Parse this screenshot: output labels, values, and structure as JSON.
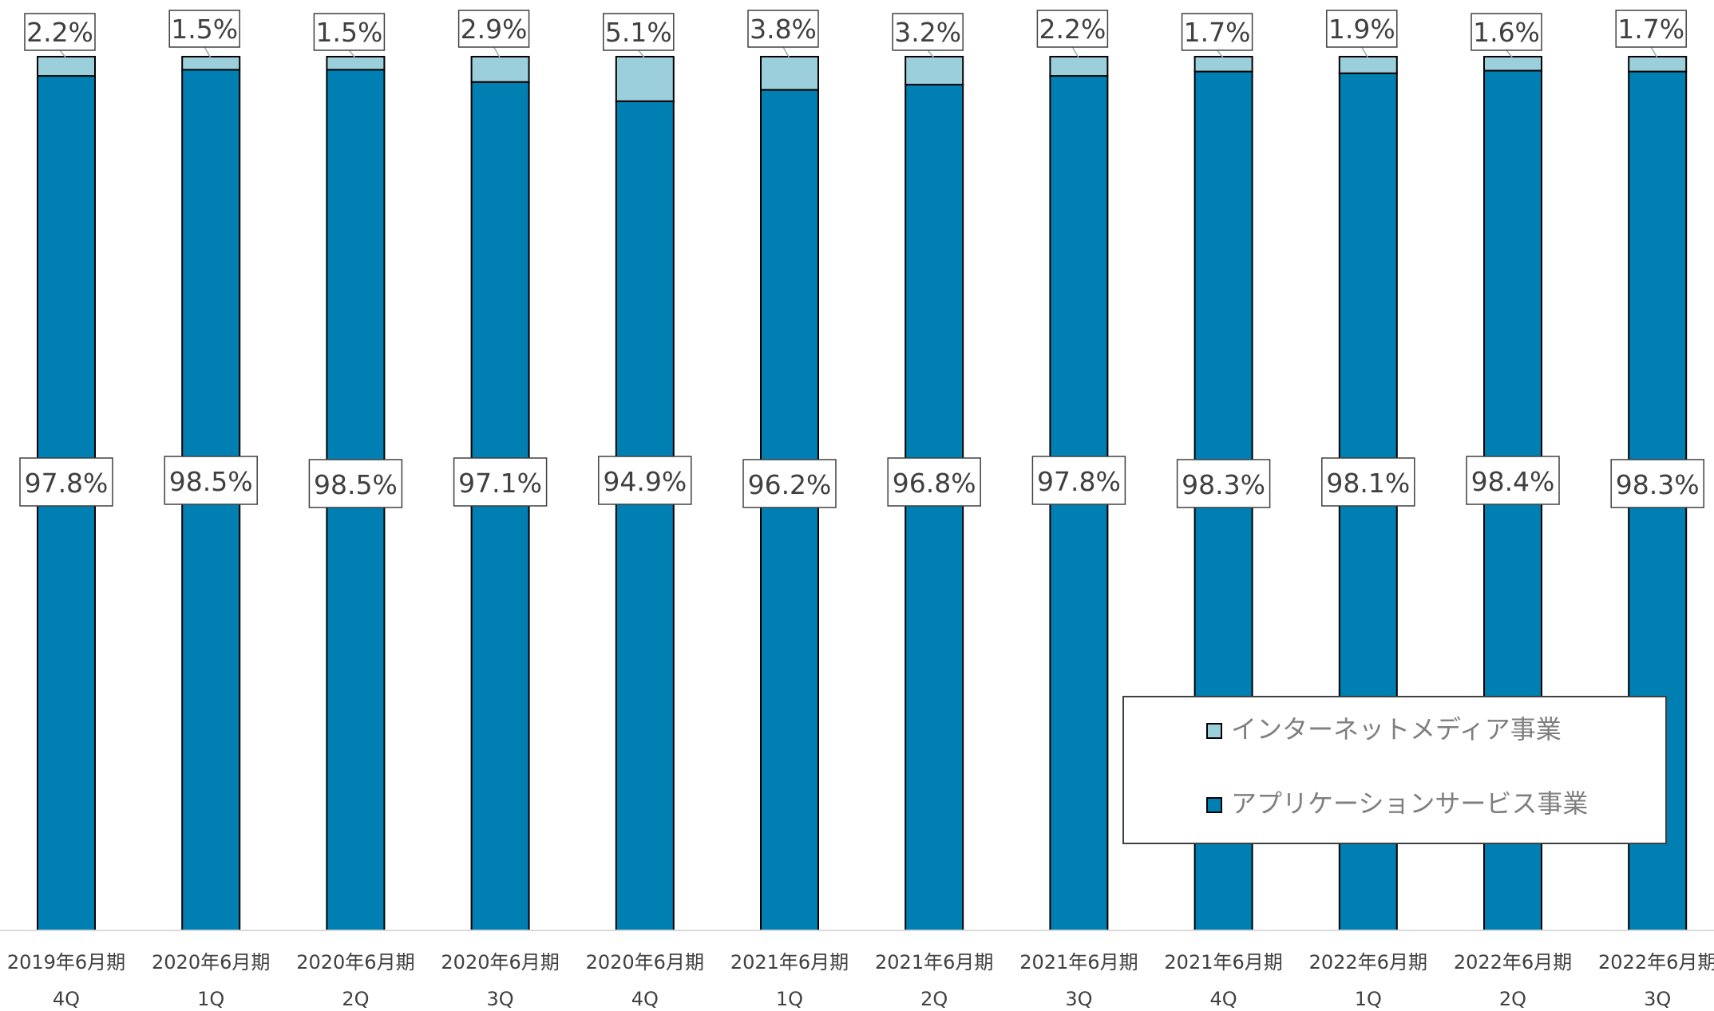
{
  "chart_data": {
    "type": "bar",
    "stacked": true,
    "normalized": true,
    "categories": [
      [
        "2019年6月期",
        "4Q"
      ],
      [
        "2020年6月期",
        "1Q"
      ],
      [
        "2020年6月期",
        "2Q"
      ],
      [
        "2020年6月期",
        "3Q"
      ],
      [
        "2020年6月期",
        "4Q"
      ],
      [
        "2021年6月期",
        "1Q"
      ],
      [
        "2021年6月期",
        "2Q"
      ],
      [
        "2021年6月期",
        "3Q"
      ],
      [
        "2021年6月期",
        "4Q"
      ],
      [
        "2022年6月期",
        "1Q"
      ],
      [
        "2022年6月期",
        "2Q"
      ],
      [
        "2022年6月期",
        "3Q"
      ]
    ],
    "series": [
      {
        "name": "アプリケーションサービス事業",
        "color": "#0080B2",
        "values": [
          97.8,
          98.5,
          98.5,
          97.1,
          94.9,
          96.2,
          96.8,
          97.8,
          98.3,
          98.1,
          98.4,
          98.3
        ],
        "labels": [
          "97.8%",
          "98.5%",
          "98.5%",
          "97.1%",
          "94.9%",
          "96.2%",
          "96.8%",
          "97.8%",
          "98.3%",
          "98.1%",
          "98.4%",
          "98.3%"
        ]
      },
      {
        "name": "インターネットメディア事業",
        "color": "#9BCFDB",
        "values": [
          2.2,
          1.5,
          1.5,
          2.9,
          5.1,
          3.8,
          3.2,
          2.2,
          1.7,
          1.9,
          1.6,
          1.7
        ],
        "labels": [
          "2.2%",
          "1.5%",
          "1.5%",
          "2.9%",
          "5.1%",
          "3.8%",
          "3.2%",
          "2.2%",
          "1.7%",
          "1.9%",
          "1.6%",
          "1.7%"
        ]
      }
    ],
    "ylim": [
      0,
      100
    ],
    "grid": false,
    "legend": {
      "position": "bottom-right",
      "entries": [
        "インターネットメディア事業",
        "アプリケーションサービス事業"
      ]
    }
  }
}
